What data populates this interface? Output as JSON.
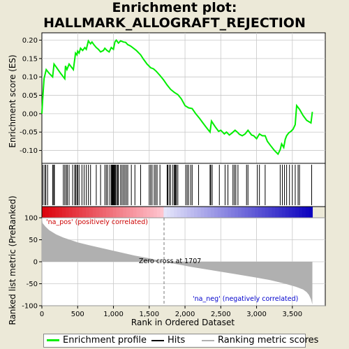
{
  "title": "Enrichment plot:\nHALLMARK_ALLOGRAFT_REJECTION",
  "title_line1": "Enrichment plot:",
  "title_line2": "HALLMARK_ALLOGRAFT_REJECTION",
  "chart_data": [
    {
      "type": "line",
      "panel": "enrichment-score",
      "ylabel": "Enrichment score (ES)",
      "ylim": [
        -0.135,
        0.22
      ],
      "xlim": [
        0,
        3960
      ],
      "yticks": [
        "0.20",
        "0.15",
        "0.10",
        "0.05",
        "0.00",
        "-0.05",
        "-0.10"
      ],
      "ytick_values": [
        0.2,
        0.15,
        0.1,
        0.05,
        0.0,
        -0.05,
        -0.1
      ],
      "grid": true,
      "color": "#00ee00",
      "series": [
        {
          "x": [
            0,
            10,
            30,
            60,
            100,
            150,
            170,
            200,
            260,
            320,
            330,
            350,
            380,
            400,
            440,
            460,
            470,
            490,
            500,
            520,
            540,
            570,
            600,
            620,
            650,
            680,
            700,
            730,
            760,
            790,
            820,
            860,
            880,
            910,
            940,
            970,
            1000,
            1020,
            1040,
            1070,
            1100,
            1140,
            1170,
            1200,
            1240,
            1280,
            1320,
            1380,
            1420,
            1470,
            1520,
            1560,
            1600,
            1650,
            1700,
            1750,
            1800,
            1850,
            1900,
            1950,
            2000,
            2050,
            2100,
            2150,
            2200,
            2250,
            2300,
            2350,
            2370,
            2420,
            2470,
            2500,
            2550,
            2580,
            2620,
            2660,
            2700,
            2730,
            2760,
            2800,
            2840,
            2880,
            2930,
            2960,
            3000,
            3040,
            3080,
            3120,
            3150,
            3200,
            3250,
            3300,
            3330,
            3350,
            3380,
            3400,
            3420,
            3450,
            3480,
            3510,
            3540,
            3560,
            3600,
            3650,
            3700,
            3760,
            3780
          ],
          "y": [
            0.0,
            0.035,
            0.095,
            0.12,
            0.11,
            0.1,
            0.135,
            0.127,
            0.11,
            0.095,
            0.13,
            0.12,
            0.135,
            0.13,
            0.12,
            0.15,
            0.165,
            0.16,
            0.17,
            0.165,
            0.178,
            0.172,
            0.18,
            0.175,
            0.198,
            0.19,
            0.195,
            0.187,
            0.18,
            0.175,
            0.168,
            0.172,
            0.178,
            0.172,
            0.168,
            0.18,
            0.175,
            0.195,
            0.2,
            0.192,
            0.198,
            0.195,
            0.194,
            0.188,
            0.184,
            0.178,
            0.172,
            0.16,
            0.148,
            0.135,
            0.125,
            0.122,
            0.115,
            0.104,
            0.092,
            0.078,
            0.066,
            0.058,
            0.052,
            0.04,
            0.022,
            0.016,
            0.014,
            0.0,
            -0.012,
            -0.025,
            -0.038,
            -0.05,
            -0.02,
            -0.035,
            -0.048,
            -0.045,
            -0.055,
            -0.05,
            -0.058,
            -0.052,
            -0.045,
            -0.05,
            -0.056,
            -0.06,
            -0.055,
            -0.045,
            -0.058,
            -0.06,
            -0.068,
            -0.055,
            -0.06,
            -0.06,
            -0.075,
            -0.088,
            -0.1,
            -0.11,
            -0.098,
            -0.082,
            -0.092,
            -0.07,
            -0.06,
            -0.052,
            -0.048,
            -0.042,
            -0.03,
            0.022,
            0.012,
            -0.005,
            -0.018,
            -0.025,
            0.005
          ]
        }
      ]
    },
    {
      "type": "scatter",
      "panel": "hits",
      "label": "Hits",
      "xlim": [
        0,
        3960
      ],
      "positions": [
        15,
        40,
        55,
        80,
        150,
        165,
        175,
        300,
        320,
        340,
        355,
        380,
        430,
        460,
        470,
        490,
        500,
        520,
        560,
        590,
        620,
        650,
        680,
        760,
        820,
        880,
        900,
        920,
        950,
        970,
        980,
        990,
        1000,
        1010,
        1020,
        1030,
        1045,
        1060,
        1070,
        1100,
        1120,
        1140,
        1160,
        1180,
        1200,
        1250,
        1300,
        1380,
        1500,
        1520,
        1540,
        1570,
        1590,
        1610,
        1650,
        1750,
        1760,
        1780,
        1800,
        1830,
        1850,
        1860,
        1870,
        1880,
        1900,
        2010,
        2030,
        2050,
        2080,
        2100,
        2190,
        2350,
        2360,
        2380,
        2480,
        2560,
        2600,
        2670,
        2690,
        2710,
        2740,
        2860,
        2880,
        3010,
        3040,
        3120,
        3330,
        3360,
        3390,
        3420,
        3460,
        3500,
        3540,
        3580,
        3600,
        3770
      ]
    },
    {
      "type": "area",
      "panel": "ranked-list",
      "ylabel": "Ranked list metric (PreRanked)",
      "xlabel": "Rank in Ordered Dataset",
      "ylim": [
        -100,
        100
      ],
      "xlim": [
        0,
        3960
      ],
      "yticks": [
        "100",
        "50",
        "0",
        "-50",
        "-100"
      ],
      "ytick_values": [
        100,
        50,
        0,
        -50,
        -100
      ],
      "xticks": [
        "0",
        "500",
        "1,000",
        "1,500",
        "2,000",
        "2,500",
        "3,000",
        "3,500"
      ],
      "xtick_values": [
        0,
        500,
        1000,
        1500,
        2000,
        2500,
        3000,
        3500
      ],
      "color": "#b0b0b0",
      "series": [
        {
          "x": [
            0,
            10,
            50,
            100,
            200,
            300,
            500,
            700,
            1000,
            1300,
            1500,
            1707,
            1900,
            2100,
            2400,
            2700,
            3000,
            3200,
            3400,
            3550,
            3650,
            3700,
            3730,
            3760,
            3780
          ],
          "y": [
            100,
            88,
            80,
            72,
            62,
            55,
            44,
            36,
            25,
            14,
            8,
            0,
            -6,
            -12,
            -20,
            -28,
            -36,
            -42,
            -50,
            -57,
            -63,
            -69,
            -75,
            -85,
            -97
          ]
        }
      ],
      "annotations": {
        "pos_label": "'na_pos' (positively correlated)",
        "neg_label": "'na_neg' (negatively correlated)",
        "zero_cross": "Zero cross at 1707",
        "zero_cross_x": 1707
      }
    }
  ],
  "legend": {
    "items": [
      {
        "label": "Enrichment profile",
        "color": "#00ee00"
      },
      {
        "label": "Hits",
        "color": "#000000"
      },
      {
        "label": "Ranking metric scores",
        "color": "#b0b0b0"
      }
    ]
  },
  "colors": {
    "background": "#ece9d8",
    "plot_bg": "#ffffff",
    "grid": "#c8c8c8",
    "pos_label": "#cc0000",
    "neg_label": "#0000cc"
  }
}
